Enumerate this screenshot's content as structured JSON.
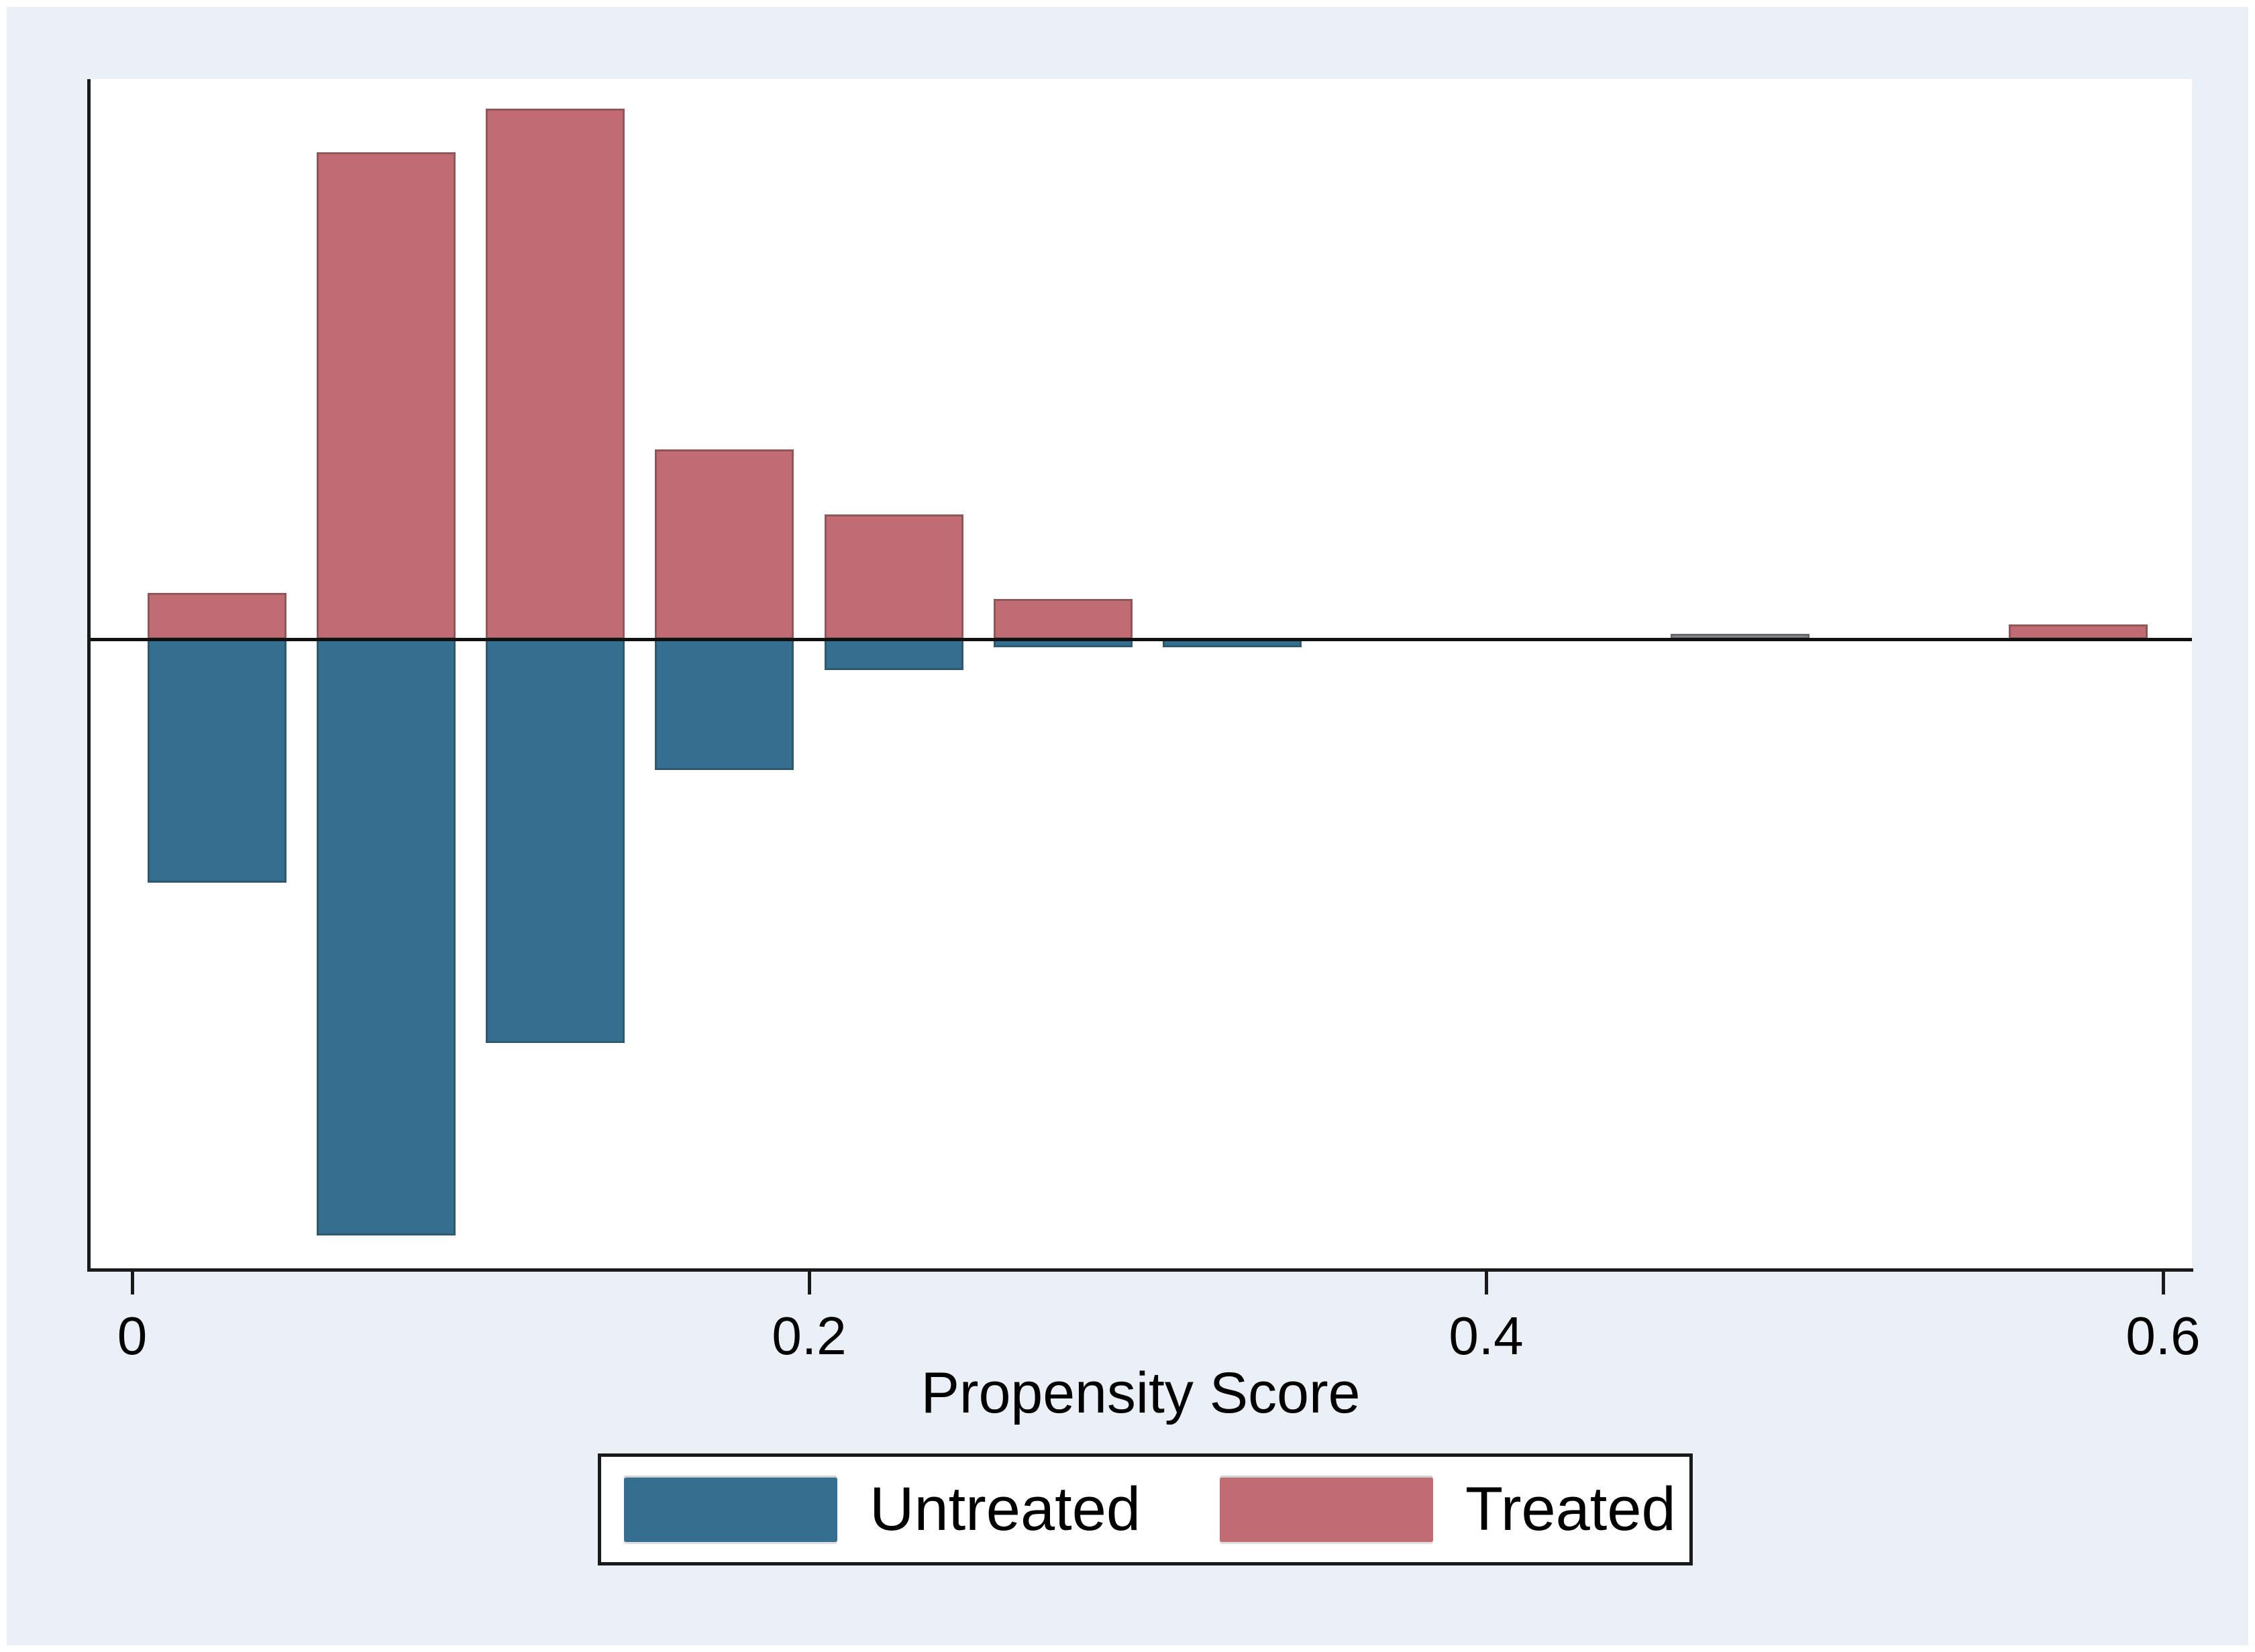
{
  "chart_data": {
    "type": "bar",
    "variant": "mirrored_histogram",
    "title": "",
    "xlabel": "Propensity Score",
    "ylabel": "",
    "x_tick_labels": [
      "0",
      "0.2",
      "0.4",
      "0.6"
    ],
    "x_tick_values": [
      0,
      0.2,
      0.4,
      0.6
    ],
    "xlim": [
      -0.013,
      0.608
    ],
    "grid": "off",
    "legend_position": "bottom-center",
    "bin_width": 0.05,
    "bar_width_units": 0.041,
    "y_units": "relative frequency, no y-axis scale shown; heights given in screenshot pixels above/below the zero line",
    "series": [
      {
        "name": "Untreated",
        "color": "#356F90",
        "direction": "below"
      },
      {
        "name": "Treated",
        "color": "#C16C72",
        "direction": "above"
      }
    ],
    "bins": [
      {
        "center": 0.025,
        "treated": 69,
        "untreated": 363
      },
      {
        "center": 0.075,
        "treated": 726,
        "untreated": 889
      },
      {
        "center": 0.125,
        "treated": 791,
        "untreated": 602
      },
      {
        "center": 0.175,
        "treated": 283,
        "untreated": 195
      },
      {
        "center": 0.225,
        "treated": 186,
        "untreated": 46
      },
      {
        "center": 0.275,
        "treated": 60,
        "untreated": 12
      },
      {
        "center": 0.325,
        "treated": 0,
        "untreated": 12
      },
      {
        "center": 0.375,
        "treated": 0,
        "untreated": 0
      },
      {
        "center": 0.425,
        "treated": 0,
        "untreated": 0
      },
      {
        "center": 0.475,
        "treated": 8,
        "untreated": 0,
        "treated_color_override": "#85888C"
      },
      {
        "center": 0.525,
        "treated": 0,
        "untreated": 0
      },
      {
        "center": 0.575,
        "treated": 22,
        "untreated": 0
      }
    ]
  }
}
